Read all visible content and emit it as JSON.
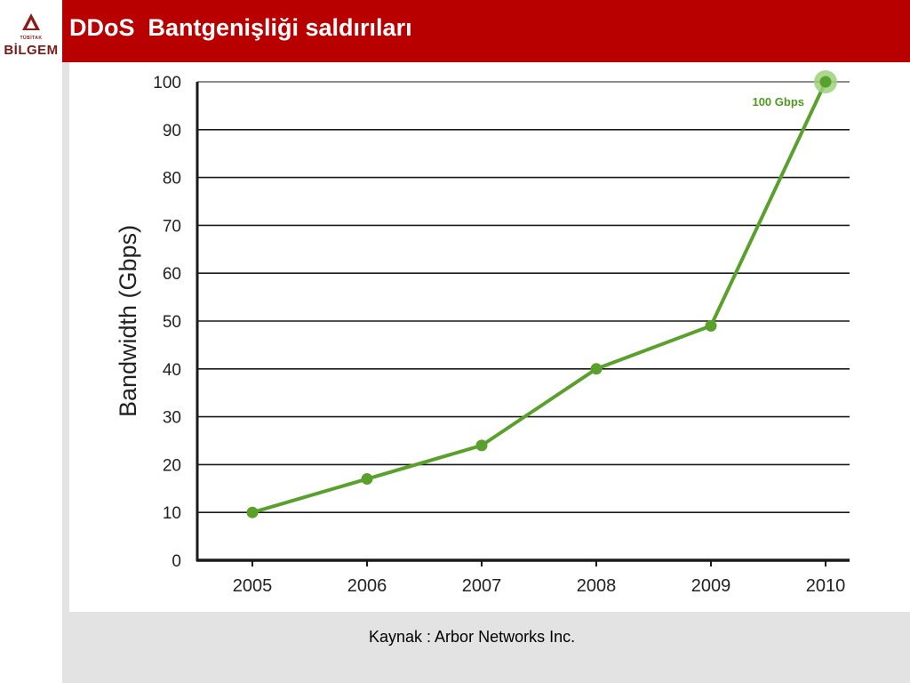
{
  "header": {
    "title": "DDoS  Bantgenişliği saldırıları",
    "logo_small_text": "TÜBİTAK",
    "logo_text": "BİLGEM"
  },
  "colors": {
    "title_bar": "#b90000",
    "series_line": "#5aa02c",
    "highlight": "#9ed07a",
    "annotation": "#4e9a1f"
  },
  "chart_data": {
    "type": "line",
    "title": "",
    "xlabel": "",
    "ylabel": "Bandwidth (Gbps)",
    "categories": [
      "2005",
      "2006",
      "2007",
      "2008",
      "2009",
      "2010"
    ],
    "series": [
      {
        "values": [
          10,
          17,
          24,
          40,
          49,
          100
        ]
      }
    ],
    "ylim": [
      0,
      100
    ],
    "yticks": [
      0,
      10,
      20,
      30,
      40,
      50,
      60,
      70,
      80,
      90,
      100
    ],
    "grid": true,
    "annotations": [
      {
        "text": "100 Gbps",
        "category": "2010",
        "value": 100
      }
    ]
  },
  "footer": {
    "source": "Kaynak : Arbor Networks Inc."
  }
}
